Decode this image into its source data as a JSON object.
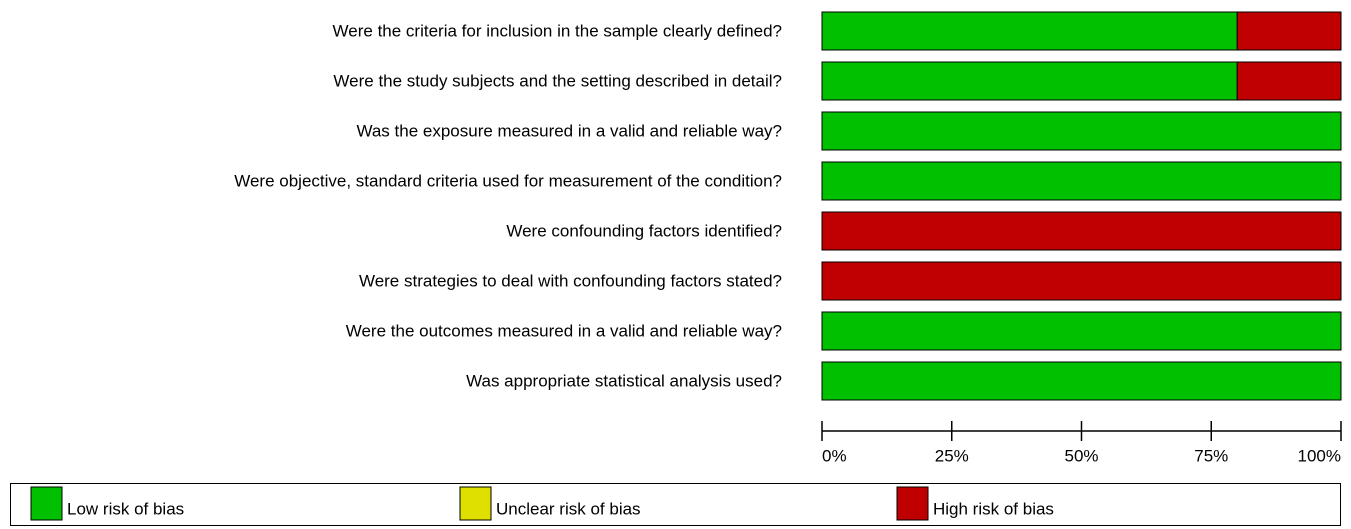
{
  "chart_data": {
    "type": "stacked-barh",
    "categories": [
      "Were the criteria for inclusion in the sample clearly defined?",
      "Were the study subjects and the setting described in detail?",
      "Was the exposure measured in a valid and reliable way?",
      "Were objective, standard criteria used for measurement of the condition?",
      "Were confounding factors identified?",
      "Were strategies to deal with confounding factors stated?",
      "Were the outcomes measured in a valid and reliable way?",
      "Was appropriate statistical analysis used?"
    ],
    "series": [
      {
        "name": "Low risk of bias",
        "color": "#00c000",
        "values": [
          80,
          80,
          100,
          100,
          0,
          0,
          100,
          100
        ]
      },
      {
        "name": "Unclear risk of bias",
        "color": "#e0e000",
        "values": [
          0,
          0,
          0,
          0,
          0,
          0,
          0,
          0
        ]
      },
      {
        "name": "High risk of bias",
        "color": "#c00000",
        "values": [
          20,
          20,
          0,
          0,
          100,
          100,
          0,
          0
        ]
      }
    ],
    "xlim": [
      0,
      100
    ],
    "xticks": [
      {
        "value": 0,
        "label": "0%"
      },
      {
        "value": 25,
        "label": "25%"
      },
      {
        "value": 50,
        "label": "50%"
      },
      {
        "value": 75,
        "label": "75%"
      },
      {
        "value": 100,
        "label": "100%"
      }
    ]
  }
}
